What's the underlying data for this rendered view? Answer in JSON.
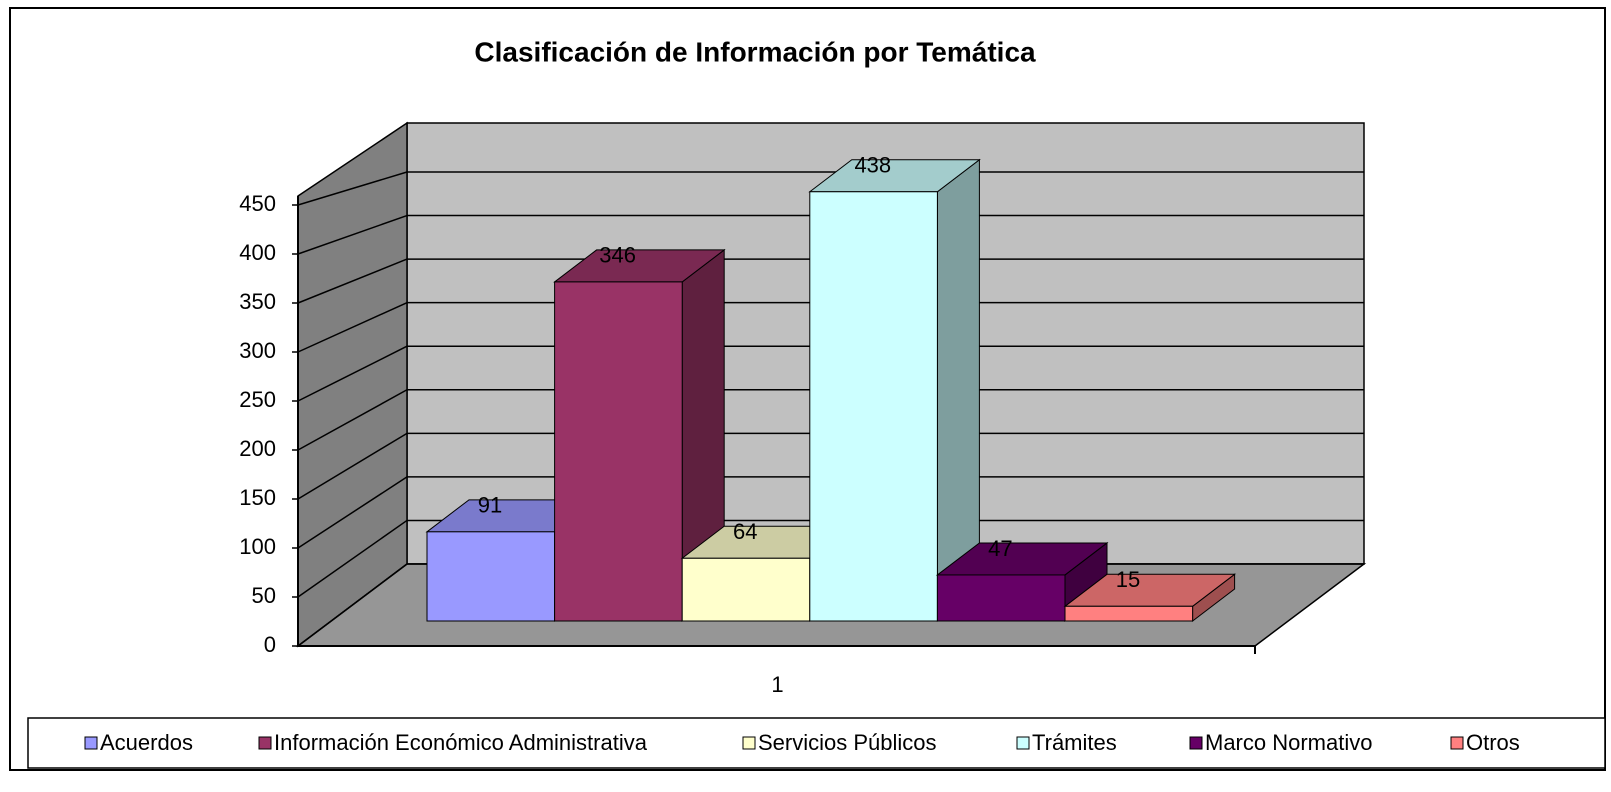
{
  "chart_data": {
    "type": "bar3d",
    "title": "Clasificación de Información por Temática",
    "categories": [
      "1"
    ],
    "series": [
      {
        "name": "Acuerdos",
        "color": "#9999ff",
        "values": [
          91
        ]
      },
      {
        "name": "Información Económico Administrativa",
        "color": "#993366",
        "values": [
          346
        ]
      },
      {
        "name": "Servicios Públicos",
        "color": "#ffffcc",
        "values": [
          64
        ]
      },
      {
        "name": "Trámites",
        "color": "#ccffff",
        "values": [
          438
        ]
      },
      {
        "name": "Marco Normativo",
        "color": "#660066",
        "values": [
          47
        ]
      },
      {
        "name": "Otros",
        "color": "#ff8080",
        "values": [
          15
        ]
      }
    ],
    "ylim": [
      0,
      450
    ],
    "yticks": [
      0,
      50,
      100,
      150,
      200,
      250,
      300,
      350,
      400,
      450
    ],
    "grid": true,
    "legend": "bottom"
  }
}
